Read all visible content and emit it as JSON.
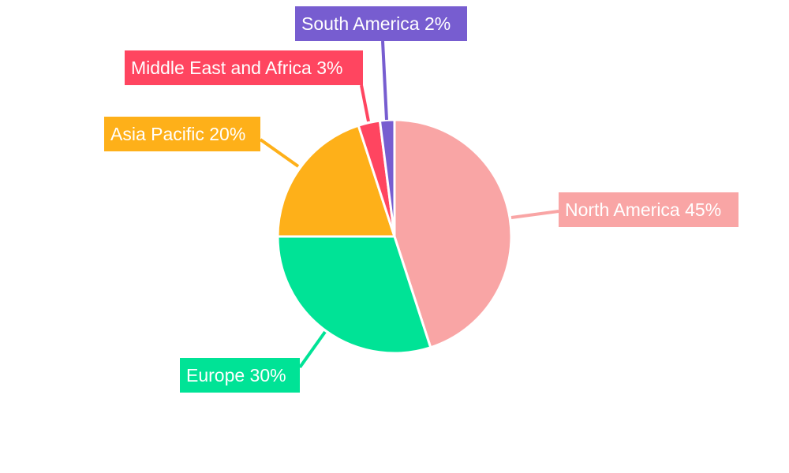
{
  "chart_data": {
    "type": "pie",
    "start_angle": "12 o'clock, clockwise",
    "legend": "none",
    "slices": [
      {
        "label": "North America",
        "value": 45,
        "display": "North America 45%",
        "color": "#f9a5a5"
      },
      {
        "label": "Europe",
        "value": 30,
        "display": "Europe 30%",
        "color": "#00e396"
      },
      {
        "label": "Asia Pacific",
        "value": 20,
        "display": "Asia Pacific 20%",
        "color": "#feb019"
      },
      {
        "label": "Middle East and Africa",
        "value": 3,
        "display": "Middle East and Africa 3%",
        "color": "#ff4560"
      },
      {
        "label": "South America",
        "value": 2,
        "display": "South America 2%",
        "color": "#775dd0"
      }
    ]
  }
}
